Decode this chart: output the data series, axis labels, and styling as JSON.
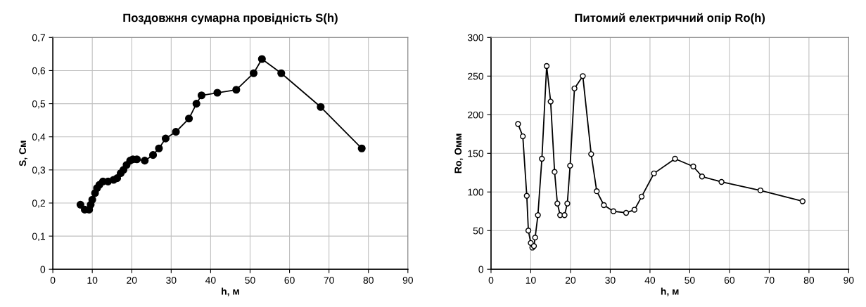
{
  "chart_data": [
    {
      "type": "line",
      "title": "Поздовжня сумарна провідність S(h)",
      "xlabel": "h, м",
      "ylabel": "S, См",
      "marker": "circle",
      "grid": true,
      "legend": false,
      "x": [
        7.0,
        8.1,
        9.2,
        9.6,
        10.0,
        10.7,
        11.2,
        11.8,
        12.7,
        14.0,
        15.4,
        16.3,
        17.2,
        17.9,
        18.7,
        19.6,
        20.3,
        21.3,
        23.3,
        25.4,
        26.9,
        28.6,
        31.2,
        34.5,
        36.4,
        37.7,
        41.7,
        46.5,
        50.9,
        53.0,
        57.9,
        67.9,
        78.3
      ],
      "series": [
        {
          "color": "#000000",
          "values": [
            0.195,
            0.18,
            0.18,
            0.195,
            0.21,
            0.23,
            0.245,
            0.255,
            0.265,
            0.265,
            0.27,
            0.275,
            0.29,
            0.3,
            0.315,
            0.328,
            0.332,
            0.332,
            0.328,
            0.345,
            0.365,
            0.395,
            0.415,
            0.455,
            0.5,
            0.525,
            0.533,
            0.542,
            0.592,
            0.635,
            0.592,
            0.49,
            0.365
          ]
        }
      ],
      "xlim": [
        0,
        90
      ],
      "xticks": [
        0,
        10,
        20,
        30,
        40,
        50,
        60,
        70,
        80,
        90
      ],
      "ylim": [
        0,
        0.7
      ],
      "yticks": [
        {
          "value": 0,
          "label": "0"
        },
        {
          "value": 0.1,
          "label": "0,1"
        },
        {
          "value": 0.2,
          "label": "0,2"
        },
        {
          "value": 0.3,
          "label": "0,3"
        },
        {
          "value": 0.4,
          "label": "0,4"
        },
        {
          "value": 0.5,
          "label": "0,5"
        },
        {
          "value": 0.6,
          "label": "0,6"
        },
        {
          "value": 0.7,
          "label": "0,7"
        }
      ]
    },
    {
      "type": "line",
      "title": "Питомий електричний опір Ro(h)",
      "xlabel": "h, м",
      "ylabel": "Ro, Омм",
      "marker": "circle",
      "grid": true,
      "legend": false,
      "x": [
        6.8,
        8.0,
        9.0,
        9.4,
        10.0,
        10.4,
        10.8,
        11.1,
        11.8,
        12.8,
        14.0,
        15.0,
        16.0,
        16.7,
        17.4,
        18.5,
        19.2,
        19.9,
        21.0,
        23.1,
        25.2,
        26.6,
        28.4,
        30.8,
        34.0,
        36.1,
        37.9,
        41.0,
        46.3,
        50.9,
        53.1,
        58.0,
        67.8,
        78.4
      ],
      "series": [
        {
          "color": "#000000",
          "values": [
            188,
            172,
            95,
            50,
            34,
            28,
            30,
            41,
            70,
            143,
            263,
            217,
            126,
            85,
            70,
            70,
            85,
            134,
            234,
            250,
            149,
            101,
            83,
            75,
            73,
            77,
            94,
            124,
            143,
            133,
            120,
            113,
            102,
            88
          ]
        }
      ],
      "xlim": [
        0,
        90
      ],
      "xticks": [
        0,
        10,
        20,
        30,
        40,
        50,
        60,
        70,
        80,
        90
      ],
      "ylim": [
        0,
        300
      ],
      "yticks": [
        0,
        50,
        100,
        150,
        200,
        250,
        300
      ]
    }
  ]
}
